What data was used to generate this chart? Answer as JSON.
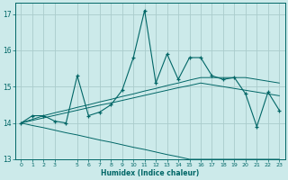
{
  "x": [
    0,
    1,
    2,
    3,
    4,
    5,
    6,
    7,
    8,
    9,
    10,
    11,
    12,
    13,
    14,
    15,
    16,
    17,
    18,
    19,
    20,
    21,
    22,
    23
  ],
  "y_main": [
    14.0,
    14.2,
    14.2,
    14.05,
    14.0,
    15.3,
    14.2,
    14.3,
    14.5,
    14.9,
    15.8,
    17.1,
    15.1,
    15.9,
    15.2,
    15.8,
    15.8,
    15.3,
    15.2,
    15.25,
    14.8,
    13.9,
    14.85,
    14.35
  ],
  "y_trend_upper": [
    14.0,
    14.1,
    14.2,
    14.28,
    14.35,
    14.43,
    14.5,
    14.58,
    14.65,
    14.73,
    14.8,
    14.88,
    14.95,
    15.03,
    15.1,
    15.18,
    15.25,
    15.25,
    15.25,
    15.25,
    15.25,
    15.2,
    15.15,
    15.1
  ],
  "y_trend_mid": [
    14.0,
    14.07,
    14.14,
    14.21,
    14.28,
    14.35,
    14.42,
    14.49,
    14.55,
    14.62,
    14.69,
    14.76,
    14.83,
    14.9,
    14.97,
    15.03,
    15.1,
    15.05,
    15.0,
    14.95,
    14.9,
    14.85,
    14.8,
    14.75
  ],
  "y_trend_lower": [
    14.0,
    13.93,
    13.87,
    13.8,
    13.73,
    13.67,
    13.6,
    13.53,
    13.47,
    13.4,
    13.33,
    13.27,
    13.2,
    13.13,
    13.07,
    13.0,
    13.0,
    13.0,
    13.0,
    13.0,
    13.0,
    13.0,
    13.0,
    13.0
  ],
  "line_color": "#006666",
  "bg_color": "#cceaea",
  "grid_color": "#aacccc",
  "xlabel": "Humidex (Indice chaleur)",
  "ylim": [
    13.0,
    17.3
  ],
  "xlim": [
    -0.5,
    23.5
  ],
  "yticks": [
    13,
    14,
    15,
    16,
    17
  ],
  "xticks": [
    0,
    1,
    2,
    3,
    5,
    6,
    7,
    8,
    9,
    10,
    11,
    12,
    13,
    14,
    15,
    16,
    17,
    18,
    19,
    20,
    21,
    22,
    23
  ],
  "marker": "+"
}
